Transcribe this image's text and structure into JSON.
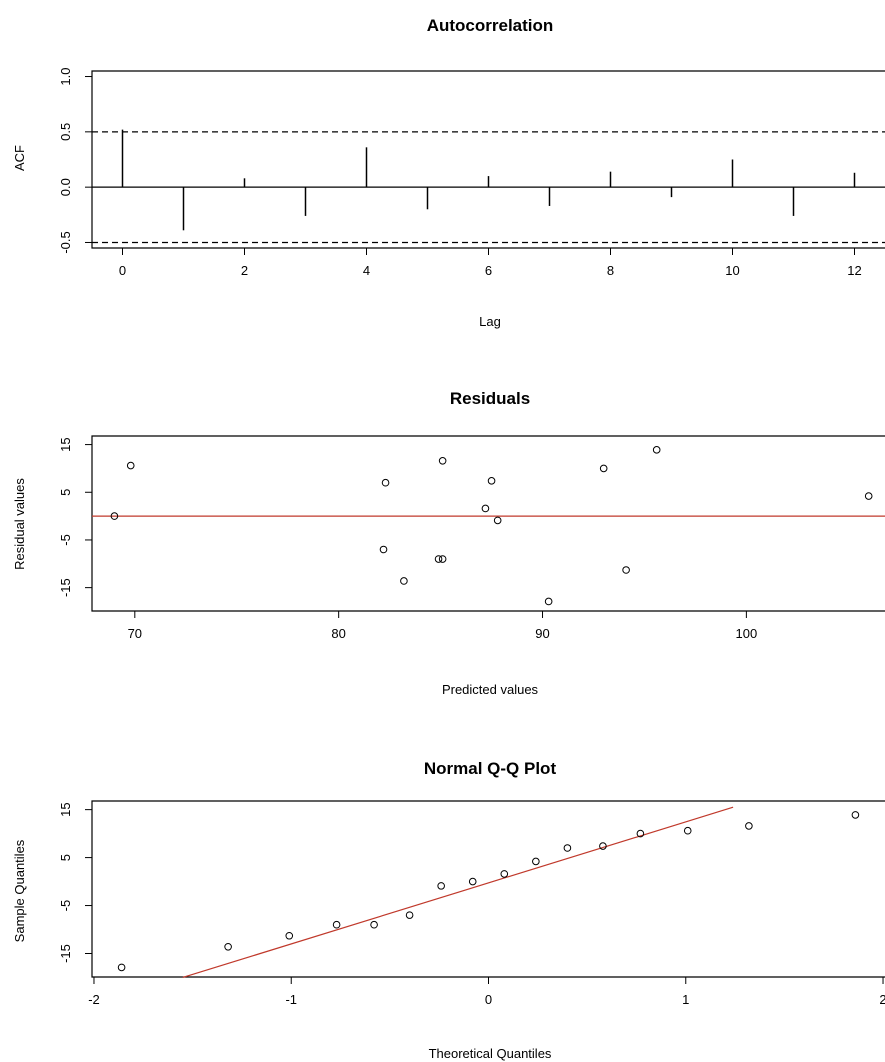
{
  "chart_data": [
    {
      "type": "bar",
      "title": "Autocorrelation",
      "xlabel": "Lag",
      "ylabel": "ACF",
      "xlim": [
        -0.5,
        12.5
      ],
      "ylim": [
        -0.55,
        1.05
      ],
      "xticks": [
        "0",
        "2",
        "4",
        "6",
        "8",
        "10",
        "12"
      ],
      "yticks": [
        "-0.5",
        "0.0",
        "0.5",
        "1.0"
      ],
      "x": [
        0,
        1,
        2,
        3,
        4,
        5,
        6,
        7,
        8,
        9,
        10,
        11,
        12
      ],
      "values": [
        0.52,
        -0.39,
        0.08,
        -0.26,
        0.36,
        -0.2,
        0.1,
        -0.17,
        0.14,
        -0.09,
        0.25,
        -0.26,
        0.13
      ],
      "confidence_band": [
        -0.5,
        0.5
      ],
      "grid": false
    },
    {
      "type": "scatter",
      "title": "Residuals",
      "xlabel": "Predicted values",
      "ylabel": "Residual values",
      "xlim": [
        67.9,
        106.8
      ],
      "ylim": [
        -19.9,
        16.8
      ],
      "xticks": [
        "70",
        "80",
        "90",
        "100"
      ],
      "yticks": [
        "-15",
        "-5",
        "5",
        "15"
      ],
      "points": [
        {
          "x": 69.0,
          "y": 0.0
        },
        {
          "x": 69.8,
          "y": 10.6
        },
        {
          "x": 82.2,
          "y": -7.0
        },
        {
          "x": 82.3,
          "y": 7.0
        },
        {
          "x": 83.2,
          "y": -13.6
        },
        {
          "x": 84.9,
          "y": -9.0
        },
        {
          "x": 85.1,
          "y": -9.0
        },
        {
          "x": 85.1,
          "y": 11.6
        },
        {
          "x": 87.2,
          "y": 1.6
        },
        {
          "x": 87.5,
          "y": 7.4
        },
        {
          "x": 87.8,
          "y": -0.9
        },
        {
          "x": 90.3,
          "y": -17.9
        },
        {
          "x": 93.0,
          "y": 10.0
        },
        {
          "x": 94.1,
          "y": -11.3
        },
        {
          "x": 95.6,
          "y": 13.9
        },
        {
          "x": 106.0,
          "y": 4.2
        }
      ],
      "reference_line": {
        "y": 0,
        "color": "#c0392b"
      },
      "grid": false
    },
    {
      "type": "scatter",
      "title": "Normal Q-Q Plot",
      "xlabel": "Theoretical Quantiles",
      "ylabel": "Sample Quantiles",
      "xlim": [
        -2.01,
        2.01
      ],
      "ylim": [
        -19.9,
        16.8
      ],
      "xticks": [
        "-2",
        "-1",
        "0",
        "1",
        "2"
      ],
      "yticks": [
        "-15",
        "-5",
        "5",
        "15"
      ],
      "points": [
        {
          "x": -1.86,
          "y": -17.9
        },
        {
          "x": -1.32,
          "y": -13.6
        },
        {
          "x": -1.01,
          "y": -11.3
        },
        {
          "x": -0.77,
          "y": -9.0
        },
        {
          "x": -0.58,
          "y": -9.0
        },
        {
          "x": -0.4,
          "y": -7.0
        },
        {
          "x": -0.24,
          "y": -0.9
        },
        {
          "x": -0.08,
          "y": 0.0
        },
        {
          "x": 0.08,
          "y": 1.6
        },
        {
          "x": 0.24,
          "y": 4.2
        },
        {
          "x": 0.4,
          "y": 7.0
        },
        {
          "x": 0.58,
          "y": 7.4
        },
        {
          "x": 0.77,
          "y": 10.0
        },
        {
          "x": 1.01,
          "y": 10.6
        },
        {
          "x": 1.32,
          "y": 11.6
        },
        {
          "x": 1.86,
          "y": 13.9
        }
      ],
      "reference_line": {
        "from": [
          -1.55,
          -20.0
        ],
        "to": [
          1.24,
          15.5
        ],
        "color": "#c0392b"
      },
      "grid": false
    }
  ]
}
